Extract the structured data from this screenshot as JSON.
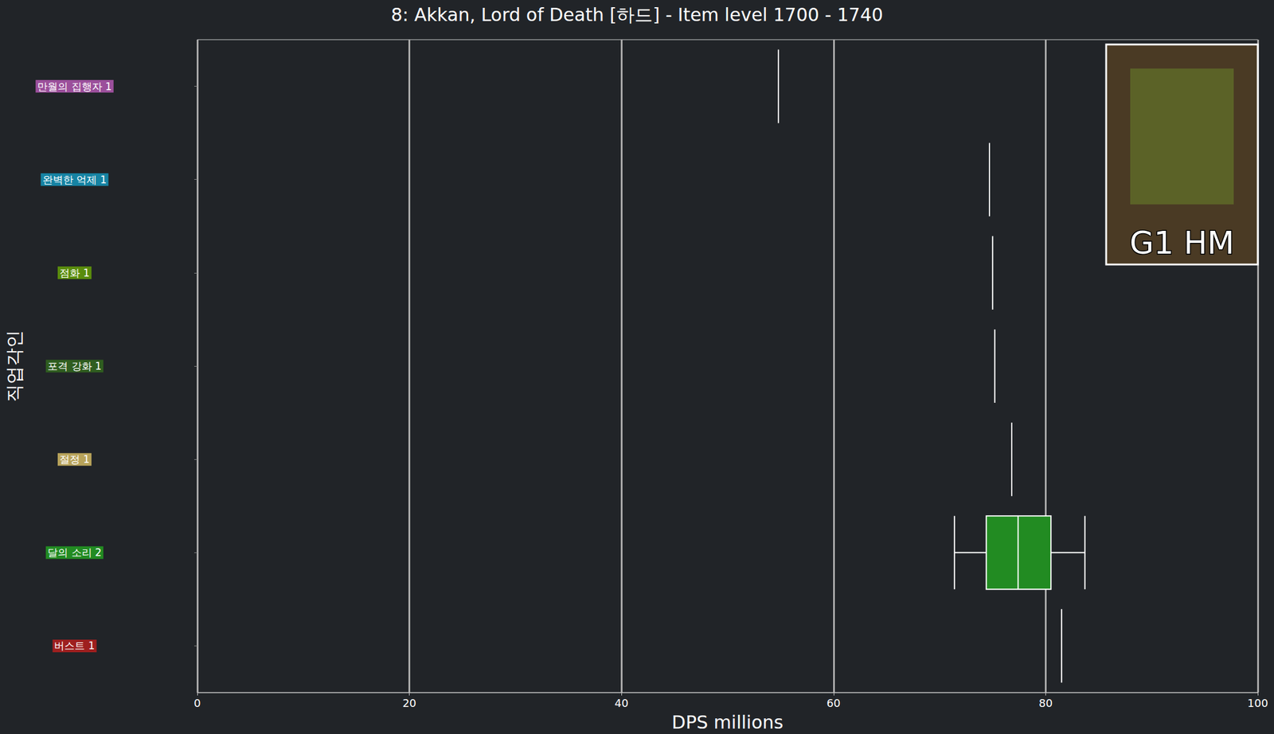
{
  "chart_data": {
    "type": "boxplot",
    "orientation": "horizontal",
    "title": "8: Akkan, Lord of Death [하드] - Item level 1700 - 1740",
    "xlabel": "DPS millions",
    "ylabel": "직업각인",
    "categories": [
      "만월의 집행자 1",
      "완벽한 억제 1",
      "점화 1",
      "포격 강화 1",
      "절정 1",
      "달의 소리 2",
      "버스트 1"
    ],
    "values": [
      [
        54.8,
        54.8,
        54.8,
        54.8,
        54.8
      ],
      [
        74.7,
        74.7,
        74.7,
        74.7,
        74.7
      ],
      [
        75.0,
        75.0,
        75.0,
        75.0,
        75.0
      ],
      [
        75.2,
        75.2,
        75.2,
        75.2,
        75.2
      ],
      [
        76.8,
        76.8,
        76.8,
        76.8,
        76.8
      ],
      [
        71.4,
        74.4,
        77.4,
        80.5,
        83.7
      ],
      [
        81.5,
        81.5,
        81.5,
        81.5,
        81.5
      ]
    ],
    "colors": [
      "#9b4f9b",
      "#1683a3",
      "#5a8c0c",
      "#2f5d1f",
      "#b8a35a",
      "#228b22",
      "#9e1f1f"
    ],
    "xlim": [
      0,
      100
    ],
    "xticks": [
      0,
      20,
      40,
      60,
      80,
      100
    ],
    "grid": true,
    "annotations": [
      {
        "text": "G1 HM"
      }
    ]
  }
}
